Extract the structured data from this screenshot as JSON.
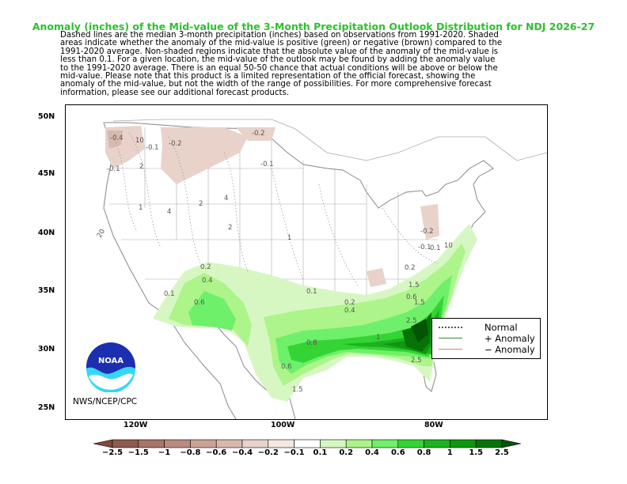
{
  "title": "Anomaly (inches) of the Mid-value of the 3-Month Precipitation Outlook Distribution for NDJ 2026-27",
  "description": "Dashed lines are the median 3-month precipitation (inches) based on observations from 1991-2020.  Shaded\nareas indicate whether the anomaly of the mid-value is positive (green) or negative (brown) compared to the\n1991-2020 average.    Non-shaded regions indicate that the absolute value of the anomaly of the mid-value is\nless than 0.1.    For a given location, the mid-value of the outlook may be found by adding the anomaly value\nto the 1991-2020 average. There is an equal 50-50 chance that actual conditions will be above or below the\nmid-value. Please note that this product is a limited representation of the official forecast, showing the\nanomaly of the mid-value, but not the width of the range of possibilities. For more comprehensive forecast\ninformation, please see our additional forecast products.",
  "axes": {
    "lat_labels": [
      "50N",
      "45N",
      "40N",
      "35N",
      "30N",
      "25N"
    ],
    "lon_labels": [
      "120W",
      "100W",
      "80W"
    ]
  },
  "legend": {
    "normal": "Normal",
    "plus": "+ Anomaly",
    "minus": "− Anomaly"
  },
  "credit": "NWS/NCEP/CPC",
  "logo_text": "NOAA",
  "colorbar": {
    "labels": [
      "−2.5",
      "−1.5",
      "−1",
      "−0.8",
      "−0.6",
      "−0.4",
      "−0.2",
      "−0.1",
      "0.1",
      "0.2",
      "0.4",
      "0.6",
      "0.8",
      "1",
      "1.5",
      "2.5"
    ],
    "colors": [
      "#7f4a3f",
      "#8f5a50",
      "#a67468",
      "#b88a80",
      "#c9a197",
      "#d9b8ae",
      "#e8d2ca",
      "#f5e8e3",
      "#ffffff",
      "#d6f7c2",
      "#adf48a",
      "#6ef06a",
      "#35d435",
      "#1db21d",
      "#0e970e",
      "#057305",
      "#035503"
    ]
  },
  "map_labels": {
    "contours": [
      "-0.4",
      "10",
      "-0.1",
      "-0.2",
      "-0.2",
      "-0.1",
      "-0.1",
      "-0.2",
      "-0.1",
      "0.2",
      "0.4",
      "0.6",
      "0.1",
      "0.1",
      "0.2",
      "0.4",
      "0.6",
      "0.8",
      "1",
      "1.5",
      "2.5",
      "0.6",
      "0.2",
      "0.1",
      "1.5",
      "2.5",
      "2",
      "4",
      "2",
      "1",
      "20",
      "10",
      "4",
      "2",
      "1",
      "1.5"
    ]
  }
}
